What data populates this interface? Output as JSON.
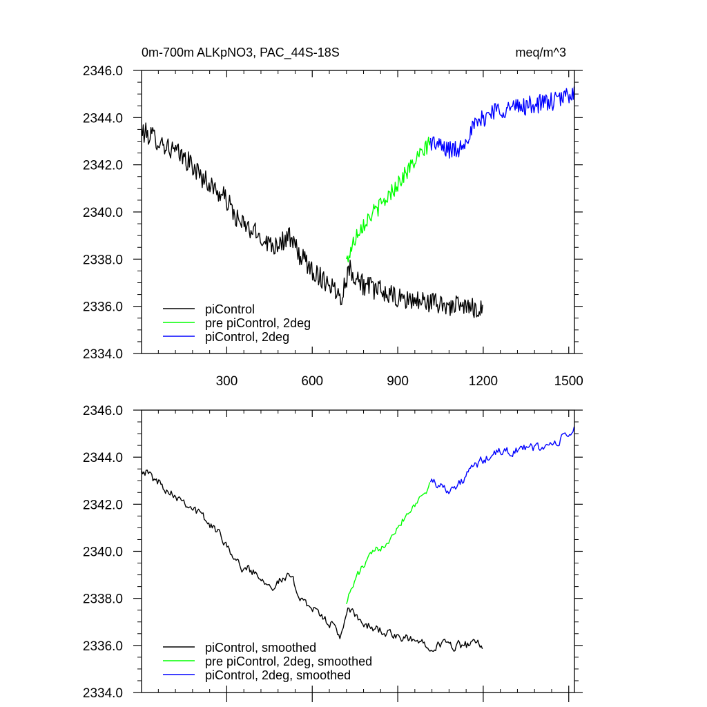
{
  "chart_data": [
    {
      "type": "line",
      "title": "0m-700m ALKpNO3, PAC_44S-18S",
      "units": "meq/m^3",
      "xlim": [
        1,
        1520
      ],
      "ylim": [
        2334,
        2346
      ],
      "xticks": [
        300,
        600,
        900,
        1200,
        1500
      ],
      "xtick_labels": [
        "300",
        "600",
        "900",
        "1200",
        "1500"
      ],
      "yticks": [
        2334,
        2336,
        2338,
        2340,
        2342,
        2344,
        2346
      ],
      "ytick_labels": [
        "2334.0",
        "2336.0",
        "2338.0",
        "2340.0",
        "2342.0",
        "2344.0",
        "2346.0"
      ],
      "grid": false,
      "legend_position": "bottom-left",
      "series": [
        {
          "name": "piControl",
          "color": "#000000",
          "x_range": [
            1,
            1200
          ],
          "y_anchors": [
            [
              1,
              2343.4
            ],
            [
              40,
              2343.2
            ],
            [
              100,
              2342.7
            ],
            [
              160,
              2342.2
            ],
            [
              220,
              2341.4
            ],
            [
              300,
              2340.5
            ],
            [
              340,
              2339.6
            ],
            [
              400,
              2339.1
            ],
            [
              460,
              2338.6
            ],
            [
              520,
              2338.9
            ],
            [
              560,
              2338.1
            ],
            [
              620,
              2337.3
            ],
            [
              660,
              2337.0
            ],
            [
              700,
              2336.4
            ],
            [
              730,
              2337.6
            ],
            [
              780,
              2336.9
            ],
            [
              850,
              2336.6
            ],
            [
              900,
              2336.3
            ],
            [
              1000,
              2336.2
            ],
            [
              1100,
              2336.0
            ],
            [
              1200,
              2335.9
            ]
          ],
          "noise_amplitude": 0.45
        },
        {
          "name": "pre piControl, 2deg",
          "color": "#00ff00",
          "x_range": [
            720,
            1015
          ],
          "y_anchors": [
            [
              720,
              2337.9
            ],
            [
              760,
              2339.2
            ],
            [
              800,
              2339.8
            ],
            [
              850,
              2340.4
            ],
            [
              900,
              2341.2
            ],
            [
              950,
              2342.0
            ],
            [
              1000,
              2342.7
            ],
            [
              1015,
              2343.2
            ]
          ],
          "noise_amplitude": 0.35
        },
        {
          "name": "piControl, 2deg",
          "color": "#0000ff",
          "x_range": [
            1015,
            1520
          ],
          "y_anchors": [
            [
              1015,
              2343.0
            ],
            [
              1060,
              2342.7
            ],
            [
              1110,
              2342.6
            ],
            [
              1160,
              2343.5
            ],
            [
              1230,
              2344.3
            ],
            [
              1300,
              2344.4
            ],
            [
              1400,
              2344.6
            ],
            [
              1460,
              2344.7
            ],
            [
              1500,
              2345.0
            ],
            [
              1520,
              2345.1
            ]
          ],
          "noise_amplitude": 0.4
        }
      ]
    },
    {
      "type": "line",
      "title": "",
      "xlim": [
        1,
        1520
      ],
      "ylim": [
        2334,
        2346
      ],
      "xticks": [
        300,
        600,
        900,
        1200,
        1500
      ],
      "yticks": [
        2334,
        2336,
        2338,
        2340,
        2342,
        2344,
        2346
      ],
      "ytick_labels": [
        "2334.0",
        "2336.0",
        "2338.0",
        "2340.0",
        "2342.0",
        "2344.0",
        "2346.0"
      ],
      "grid": false,
      "legend_position": "bottom-left",
      "series": [
        {
          "name": "piControl, smoothed",
          "color": "#000000",
          "x_range": [
            1,
            1200
          ],
          "y_anchors": [
            [
              1,
              2343.6
            ],
            [
              40,
              2343.1
            ],
            [
              100,
              2342.6
            ],
            [
              160,
              2342.1
            ],
            [
              220,
              2341.4
            ],
            [
              300,
              2340.4
            ],
            [
              340,
              2339.4
            ],
            [
              400,
              2339.1
            ],
            [
              460,
              2338.6
            ],
            [
              520,
              2338.9
            ],
            [
              560,
              2338.1
            ],
            [
              620,
              2337.3
            ],
            [
              660,
              2337.0
            ],
            [
              700,
              2336.4
            ],
            [
              730,
              2337.5
            ],
            [
              780,
              2336.9
            ],
            [
              850,
              2336.6
            ],
            [
              900,
              2336.3
            ],
            [
              1000,
              2336.1
            ],
            [
              1100,
              2336.0
            ],
            [
              1200,
              2336.0
            ]
          ],
          "noise_amplitude": 0.3
        },
        {
          "name": "pre piControl, 2deg, smoothed",
          "color": "#00ff00",
          "x_range": [
            720,
            1015
          ],
          "y_anchors": [
            [
              720,
              2337.9
            ],
            [
              760,
              2339.0
            ],
            [
              800,
              2339.7
            ],
            [
              850,
              2340.3
            ],
            [
              900,
              2341.1
            ],
            [
              950,
              2341.9
            ],
            [
              1000,
              2342.6
            ],
            [
              1015,
              2343.3
            ]
          ],
          "noise_amplitude": 0.25
        },
        {
          "name": "piControl, 2deg, smoothed",
          "color": "#0000ff",
          "x_range": [
            1015,
            1520
          ],
          "y_anchors": [
            [
              1015,
              2343.1
            ],
            [
              1060,
              2342.7
            ],
            [
              1110,
              2342.7
            ],
            [
              1160,
              2343.5
            ],
            [
              1230,
              2344.1
            ],
            [
              1300,
              2344.3
            ],
            [
              1400,
              2344.4
            ],
            [
              1460,
              2344.6
            ],
            [
              1500,
              2345.0
            ],
            [
              1520,
              2345.2
            ]
          ],
          "noise_amplitude": 0.3
        }
      ]
    }
  ]
}
